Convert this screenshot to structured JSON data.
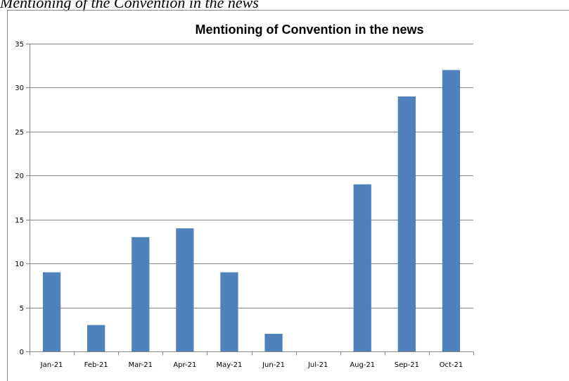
{
  "figure": {
    "caption": "Mentioning of the Convention in the news"
  },
  "chart_data": {
    "type": "bar",
    "title": "Mentioning of Convention in the news",
    "xlabel": "",
    "ylabel": "",
    "categories": [
      "Jan-21",
      "Feb-21",
      "Mar-21",
      "Apr-21",
      "May-21",
      "Jun-21",
      "Jul-21",
      "Aug-21",
      "Sep-21",
      "Oct-21"
    ],
    "values": [
      9,
      3,
      13,
      14,
      9,
      2,
      0,
      19,
      29,
      32
    ],
    "ylim": [
      0,
      35
    ],
    "yticks": [
      0,
      5,
      10,
      15,
      20,
      25,
      30,
      35
    ],
    "grid": true,
    "legend": "none",
    "bar_color": "#4f81bd",
    "grid_color": "#868686",
    "axis_color": "#868686"
  }
}
